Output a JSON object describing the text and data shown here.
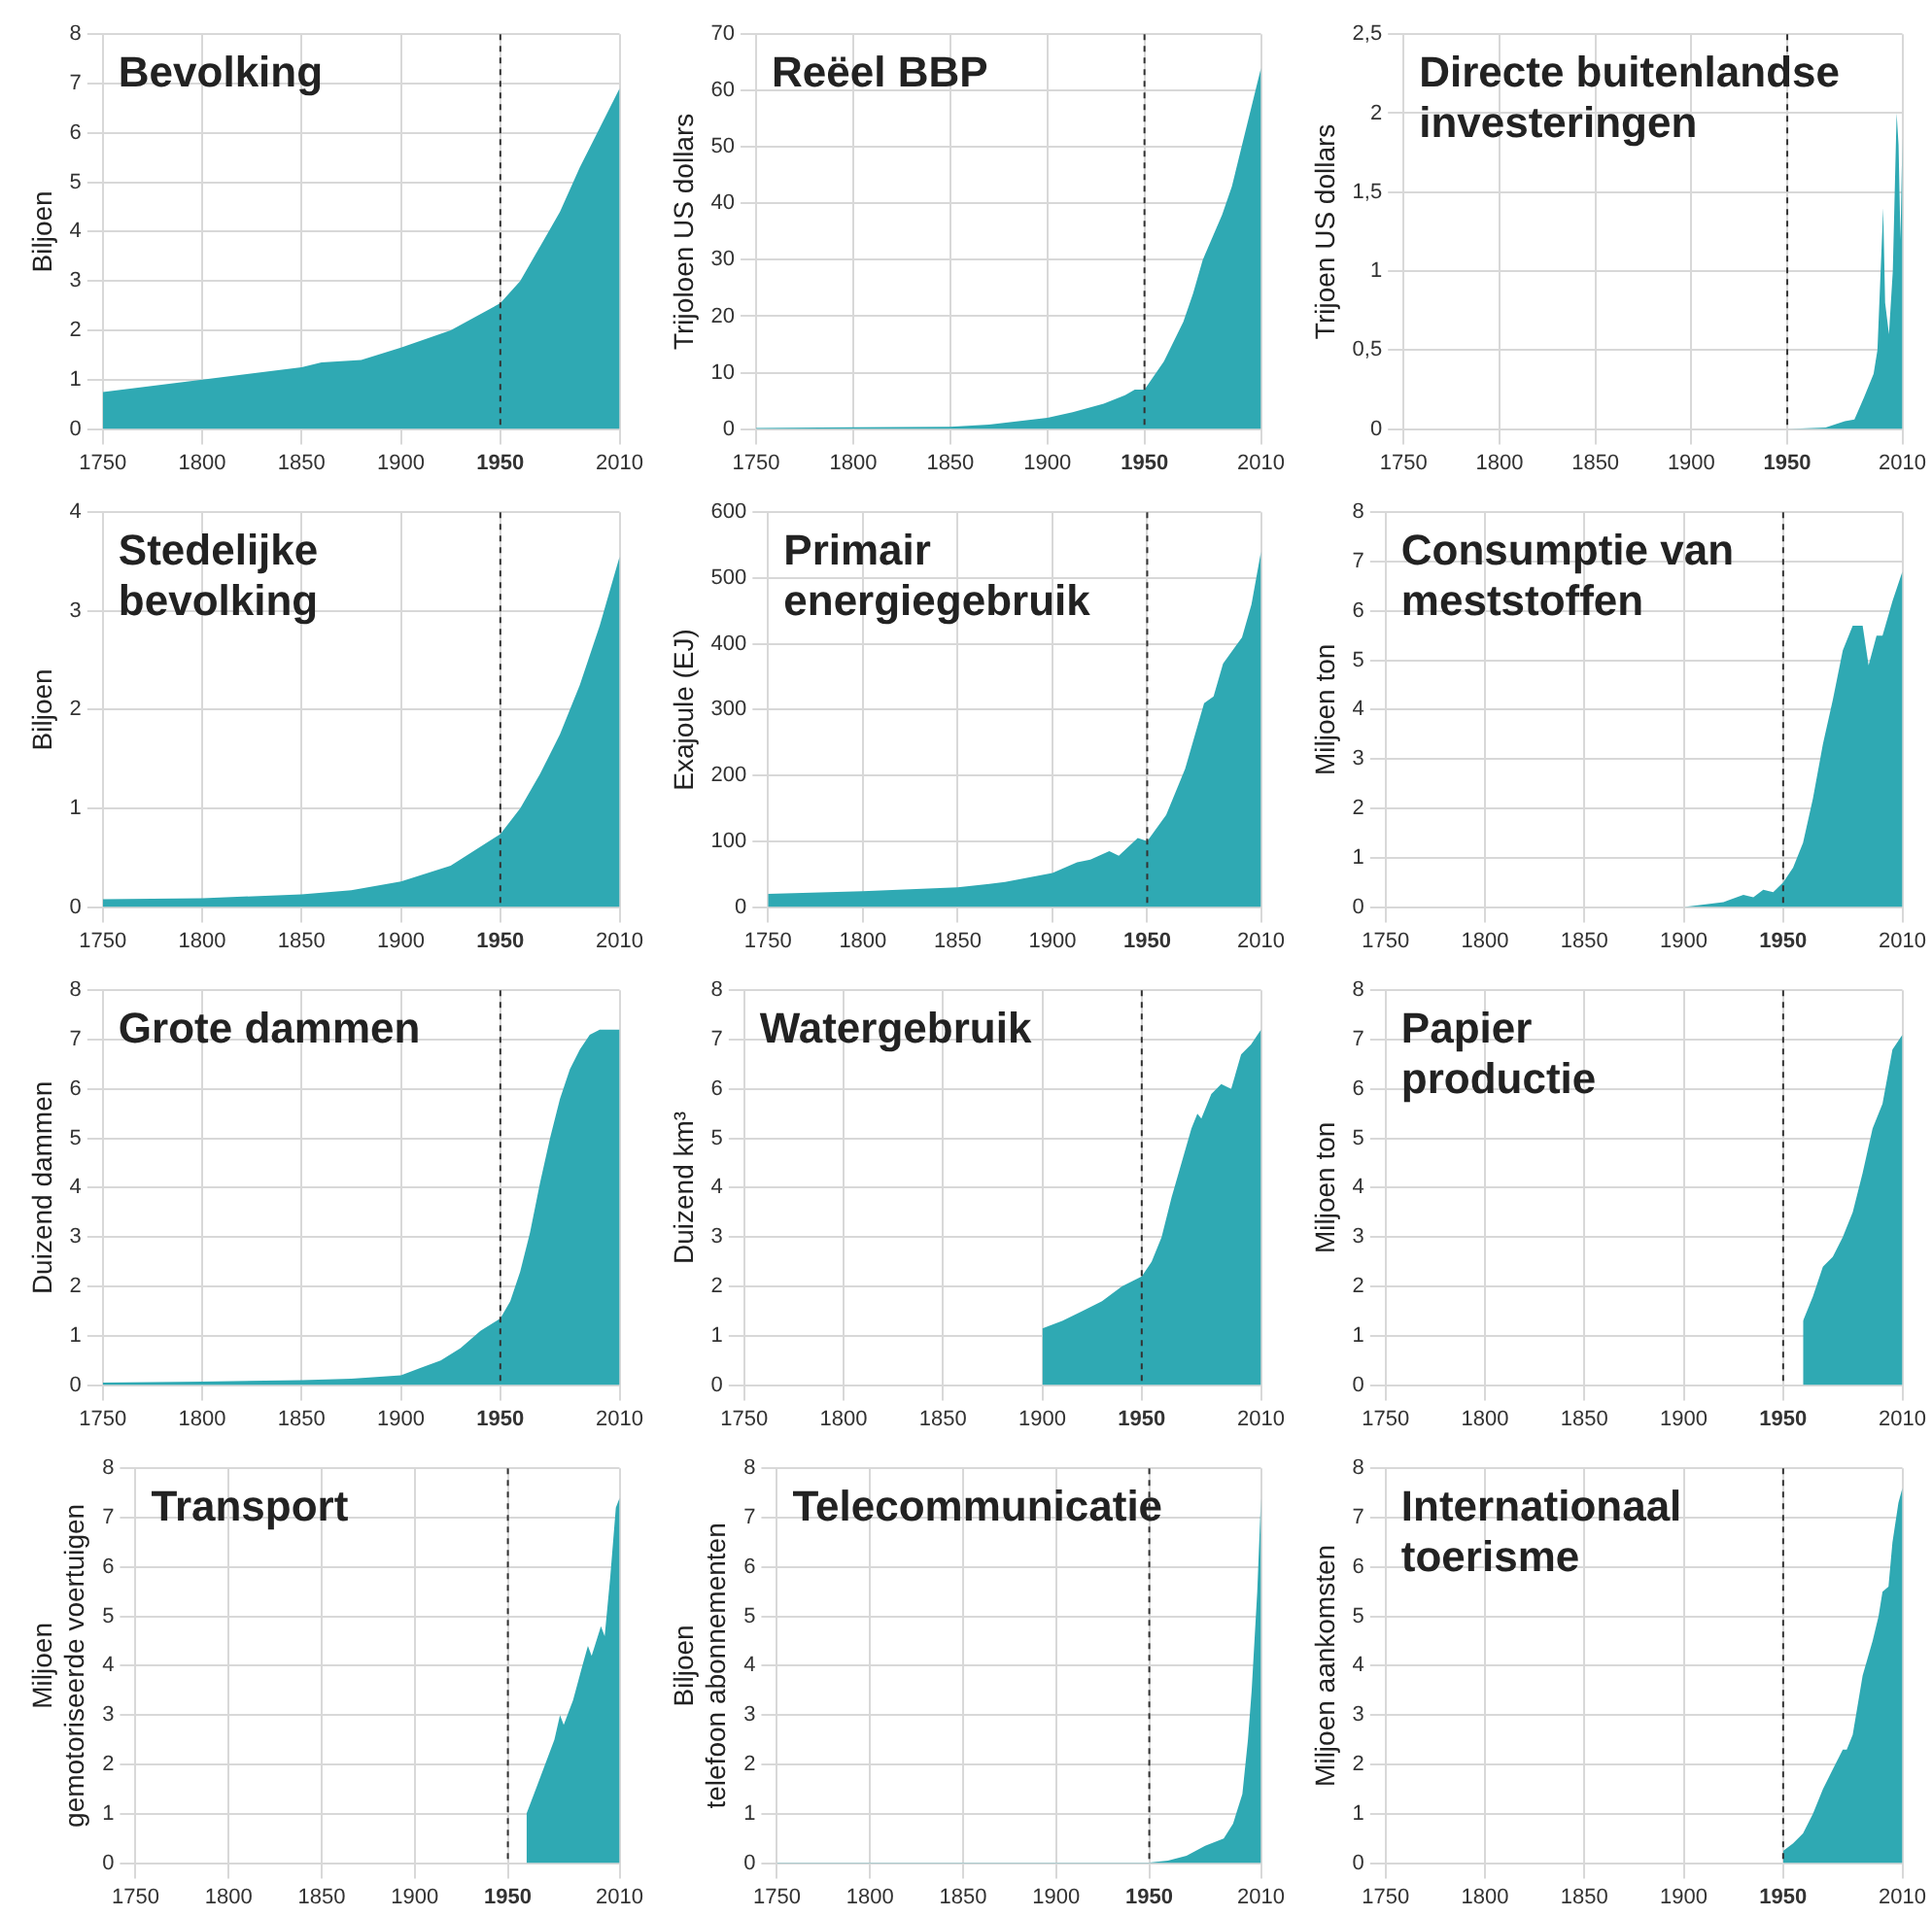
{
  "chart_data": [
    {
      "type": "area",
      "title": "Bevolking",
      "ylabel": "Biljoen",
      "color": "#2fa9b3",
      "grid": true,
      "xlim": [
        1750,
        2010
      ],
      "xticks": [
        1750,
        1800,
        1850,
        1900,
        1950,
        2010
      ],
      "ylim": [
        0,
        8
      ],
      "yticks": [
        0,
        1,
        2,
        3,
        4,
        5,
        6,
        7,
        8
      ],
      "ref_lines": [
        {
          "axis": "x",
          "value": 1950,
          "line_style": "dashed",
          "color": "#333333"
        }
      ],
      "x": [
        1750,
        1800,
        1850,
        1860,
        1880,
        1900,
        1925,
        1950,
        1960,
        1970,
        1980,
        1990,
        2000,
        2010
      ],
      "values": [
        0.75,
        1.0,
        1.25,
        1.35,
        1.4,
        1.65,
        2.0,
        2.55,
        3.0,
        3.7,
        4.4,
        5.3,
        6.1,
        6.9
      ]
    },
    {
      "type": "area",
      "title": "Reëel BBP",
      "ylabel": "Trijoloen US dollars",
      "color": "#2fa9b3",
      "grid": true,
      "xlim": [
        1750,
        2010
      ],
      "xticks": [
        1750,
        1800,
        1850,
        1900,
        1950,
        2010
      ],
      "ylim": [
        0,
        70
      ],
      "yticks": [
        0,
        10,
        20,
        30,
        40,
        50,
        60,
        70
      ],
      "ref_lines": [
        {
          "axis": "x",
          "value": 1950,
          "line_style": "dashed",
          "color": "#333333"
        }
      ],
      "x": [
        1750,
        1800,
        1850,
        1870,
        1900,
        1913,
        1929,
        1940,
        1945,
        1950,
        1960,
        1970,
        1975,
        1980,
        1990,
        1995,
        2000,
        2005,
        2010
      ],
      "values": [
        0.2,
        0.3,
        0.4,
        0.8,
        2,
        3,
        4.5,
        6,
        7,
        7,
        12,
        19,
        24,
        30,
        38,
        43,
        50,
        57,
        64
      ]
    },
    {
      "type": "area",
      "title": "Directe buitenlandse\ninvesteringen",
      "ylabel": "Trijoen US dollars",
      "color": "#2fa9b3",
      "grid": true,
      "xlim": [
        1750,
        2010
      ],
      "xticks": [
        1750,
        1800,
        1850,
        1900,
        1950,
        2010
      ],
      "ylim": [
        0,
        2.5
      ],
      "yticks": [
        0,
        {
          "value": 0.5,
          "label": "0,5"
        },
        1,
        {
          "value": 1.5,
          "label": "1,5"
        },
        2,
        {
          "value": 2.5,
          "label": "2,5"
        }
      ],
      "ref_lines": [
        {
          "axis": "x",
          "value": 1950,
          "line_style": "dashed",
          "color": "#333333"
        }
      ],
      "x": [
        1750,
        1950,
        1970,
        1975,
        1980,
        1985,
        1990,
        1995,
        1997,
        2000,
        2001,
        2003,
        2005,
        2007,
        2008,
        2009,
        2010
      ],
      "values": [
        0,
        0,
        0.01,
        0.03,
        0.05,
        0.06,
        0.2,
        0.35,
        0.5,
        1.4,
        0.8,
        0.6,
        1.0,
        2.0,
        1.8,
        1.2,
        1.85
      ]
    },
    {
      "type": "area",
      "title": "Stedelijke\nbevolking",
      "ylabel": "Biljoen",
      "color": "#2fa9b3",
      "grid": true,
      "xlim": [
        1750,
        2010
      ],
      "xticks": [
        1750,
        1800,
        1850,
        1900,
        1950,
        2010
      ],
      "ylim": [
        0,
        4
      ],
      "yticks": [
        0,
        1,
        2,
        3,
        4
      ],
      "ref_lines": [
        {
          "axis": "x",
          "value": 1950,
          "line_style": "dashed",
          "color": "#333333"
        }
      ],
      "x": [
        1750,
        1800,
        1850,
        1875,
        1900,
        1925,
        1950,
        1960,
        1970,
        1980,
        1990,
        2000,
        2010
      ],
      "values": [
        0.08,
        0.09,
        0.13,
        0.17,
        0.26,
        0.42,
        0.74,
        1.0,
        1.35,
        1.75,
        2.25,
        2.85,
        3.55
      ]
    },
    {
      "type": "area",
      "title": "Primair\nenergiegebruik",
      "ylabel": "Exajoule (EJ)",
      "color": "#2fa9b3",
      "grid": true,
      "xlim": [
        1750,
        2010
      ],
      "xticks": [
        1750,
        1800,
        1850,
        1900,
        1950,
        2010
      ],
      "ylim": [
        0,
        600
      ],
      "yticks": [
        0,
        100,
        200,
        300,
        400,
        500,
        600
      ],
      "ref_lines": [
        {
          "axis": "x",
          "value": 1950,
          "line_style": "dashed",
          "color": "#333333"
        }
      ],
      "x": [
        1750,
        1800,
        1850,
        1875,
        1900,
        1913,
        1920,
        1930,
        1935,
        1945,
        1950,
        1960,
        1970,
        1975,
        1980,
        1985,
        1990,
        2000,
        2005,
        2010
      ],
      "values": [
        20,
        24,
        30,
        38,
        52,
        68,
        72,
        85,
        78,
        105,
        100,
        140,
        210,
        260,
        310,
        320,
        370,
        410,
        460,
        540
      ]
    },
    {
      "type": "area",
      "title": "Consumptie van\nmeststoffen",
      "ylabel": "Miljoen ton",
      "color": "#2fa9b3",
      "grid": true,
      "xlim": [
        1750,
        2010
      ],
      "xticks": [
        1750,
        1800,
        1850,
        1900,
        1950,
        2010
      ],
      "ylim": [
        0,
        8
      ],
      "yticks": [
        0,
        1,
        2,
        3,
        4,
        5,
        6,
        7,
        8
      ],
      "ref_lines": [
        {
          "axis": "x",
          "value": 1950,
          "line_style": "dashed",
          "color": "#333333"
        }
      ],
      "x": [
        1750,
        1900,
        1920,
        1930,
        1935,
        1940,
        1945,
        1950,
        1955,
        1960,
        1965,
        1970,
        1975,
        1980,
        1985,
        1990,
        1993,
        1997,
        2000,
        2005,
        2010
      ],
      "values": [
        0,
        0,
        0.1,
        0.25,
        0.2,
        0.35,
        0.3,
        0.5,
        0.8,
        1.3,
        2.2,
        3.3,
        4.2,
        5.2,
        5.7,
        5.7,
        4.9,
        5.5,
        5.5,
        6.2,
        6.8
      ]
    },
    {
      "type": "area",
      "title": "Grote dammen",
      "ylabel": "Duizend dammen",
      "color": "#2fa9b3",
      "grid": true,
      "xlim": [
        1750,
        2010
      ],
      "xticks": [
        1750,
        1800,
        1850,
        1900,
        1950,
        2010
      ],
      "ylim": [
        0,
        8
      ],
      "yticks": [
        0,
        1,
        2,
        3,
        4,
        5,
        6,
        7,
        8
      ],
      "ref_lines": [
        {
          "axis": "x",
          "value": 1950,
          "line_style": "dashed",
          "color": "#333333"
        }
      ],
      "x": [
        1750,
        1800,
        1850,
        1875,
        1900,
        1910,
        1920,
        1930,
        1940,
        1950,
        1955,
        1960,
        1965,
        1970,
        1975,
        1980,
        1985,
        1990,
        1995,
        2000,
        2010
      ],
      "values": [
        0.05,
        0.07,
        0.1,
        0.13,
        0.2,
        0.35,
        0.5,
        0.75,
        1.1,
        1.35,
        1.7,
        2.3,
        3.1,
        4.1,
        5.0,
        5.8,
        6.4,
        6.8,
        7.1,
        7.2,
        7.2
      ]
    },
    {
      "type": "area",
      "title": "Watergebruik",
      "ylabel": "Duizend km³",
      "color": "#2fa9b3",
      "grid": true,
      "xlim": [
        1750,
        2010
      ],
      "xticks": [
        1750,
        1800,
        1850,
        1900,
        1950,
        2010
      ],
      "ylim": [
        0,
        8
      ],
      "yticks": [
        0,
        1,
        2,
        3,
        4,
        5,
        6,
        7,
        8
      ],
      "ref_lines": [
        {
          "axis": "x",
          "value": 1950,
          "line_style": "dashed",
          "color": "#333333"
        }
      ],
      "x": [
        1900,
        1910,
        1920,
        1930,
        1940,
        1950,
        1955,
        1960,
        1965,
        1970,
        1975,
        1978,
        1980,
        1985,
        1990,
        1995,
        2000,
        2005,
        2010
      ],
      "values": [
        1.15,
        1.3,
        1.5,
        1.7,
        2.0,
        2.2,
        2.5,
        3.0,
        3.8,
        4.5,
        5.2,
        5.5,
        5.4,
        5.9,
        6.1,
        6.0,
        6.7,
        6.9,
        7.2
      ]
    },
    {
      "type": "area",
      "title": "Papier\nproductie",
      "ylabel": "Miljoen ton",
      "color": "#2fa9b3",
      "grid": true,
      "xlim": [
        1750,
        2010
      ],
      "xticks": [
        1750,
        1800,
        1850,
        1900,
        1950,
        2010
      ],
      "ylim": [
        0,
        8
      ],
      "yticks": [
        0,
        1,
        2,
        3,
        4,
        5,
        6,
        7,
        8
      ],
      "ref_lines": [
        {
          "axis": "x",
          "value": 1950,
          "line_style": "dashed",
          "color": "#333333"
        }
      ],
      "x": [
        1960,
        1965,
        1970,
        1975,
        1980,
        1985,
        1990,
        1995,
        2000,
        2005,
        2010
      ],
      "values": [
        1.3,
        1.8,
        2.4,
        2.6,
        3.0,
        3.5,
        4.3,
        5.2,
        5.7,
        6.8,
        7.1
      ]
    },
    {
      "type": "area",
      "title": "Transport",
      "ylabel": "Miljoen gemotoriseerde voertuigen",
      "color": "#2fa9b3",
      "grid": true,
      "xlim": [
        1750,
        2010
      ],
      "xticks": [
        1750,
        1800,
        1850,
        1900,
        1950,
        2010
      ],
      "ylim": [
        0,
        8
      ],
      "yticks": [
        0,
        1,
        2,
        3,
        4,
        5,
        6,
        7,
        8
      ],
      "ref_lines": [
        {
          "axis": "x",
          "value": 1950,
          "line_style": "dashed",
          "color": "#333333"
        }
      ],
      "x": [
        1960,
        1965,
        1970,
        1975,
        1978,
        1980,
        1985,
        1990,
        1993,
        1995,
        2000,
        2002,
        2005,
        2008,
        2010
      ],
      "values": [
        1.0,
        1.5,
        2.0,
        2.5,
        3.0,
        2.8,
        3.3,
        4.0,
        4.4,
        4.2,
        4.8,
        4.6,
        5.8,
        7.2,
        7.4
      ]
    },
    {
      "type": "area",
      "title": "Telecommunicatie",
      "ylabel": "Biljoen telefoon abonnementen",
      "color": "#2fa9b3",
      "grid": true,
      "xlim": [
        1750,
        2010
      ],
      "xticks": [
        1750,
        1800,
        1850,
        1900,
        1950,
        2010
      ],
      "ylim": [
        0,
        8
      ],
      "yticks": [
        0,
        1,
        2,
        3,
        4,
        5,
        6,
        7,
        8
      ],
      "ref_lines": [
        {
          "axis": "x",
          "value": 1950,
          "line_style": "dashed",
          "color": "#333333"
        }
      ],
      "x": [
        1750,
        1950,
        1960,
        1970,
        1980,
        1990,
        1995,
        2000,
        2003,
        2005,
        2008,
        2010
      ],
      "values": [
        0.01,
        0.01,
        0.05,
        0.15,
        0.35,
        0.5,
        0.8,
        1.4,
        2.5,
        3.5,
        5.5,
        7.4
      ]
    },
    {
      "type": "area",
      "title": "Internationaal\ntoerisme",
      "ylabel": "Miljoen aankomsten",
      "color": "#2fa9b3",
      "grid": true,
      "xlim": [
        1750,
        2010
      ],
      "xticks": [
        1750,
        1800,
        1850,
        1900,
        1950,
        2010
      ],
      "ylim": [
        0,
        8
      ],
      "yticks": [
        0,
        1,
        2,
        3,
        4,
        5,
        6,
        7,
        8
      ],
      "ref_lines": [
        {
          "axis": "x",
          "value": 1950,
          "line_style": "dashed",
          "color": "#333333"
        }
      ],
      "x": [
        1950,
        1955,
        1960,
        1965,
        1970,
        1975,
        1980,
        1982,
        1985,
        1990,
        1995,
        1998,
        2000,
        2003,
        2005,
        2008,
        2010
      ],
      "values": [
        0.25,
        0.4,
        0.6,
        1.0,
        1.5,
        1.9,
        2.3,
        2.3,
        2.6,
        3.8,
        4.5,
        5.0,
        5.5,
        5.6,
        6.5,
        7.3,
        7.6
      ]
    }
  ]
}
